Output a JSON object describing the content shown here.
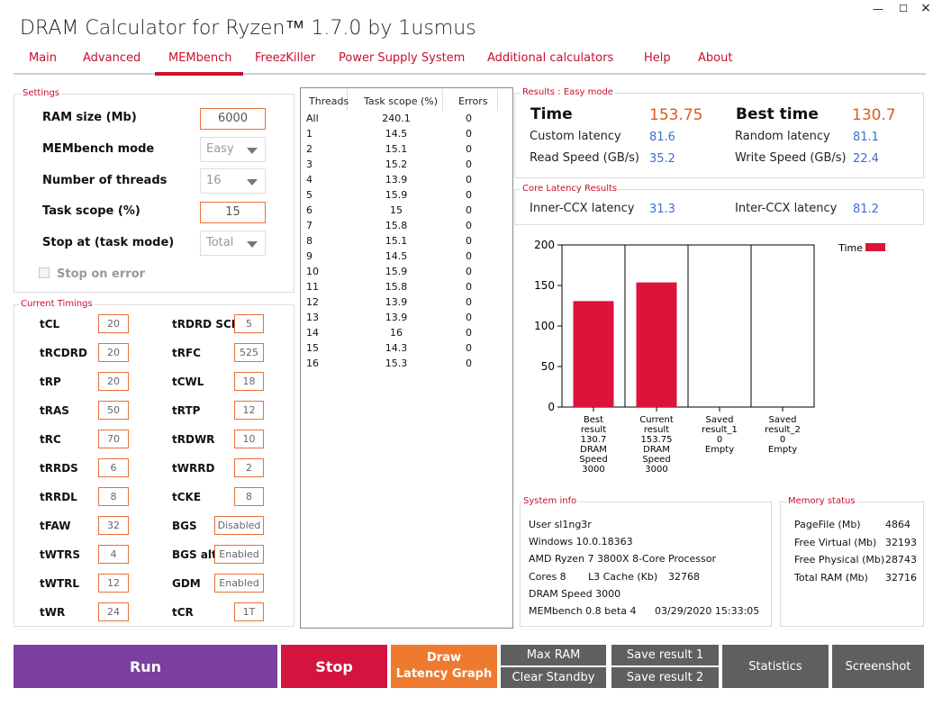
{
  "window": {
    "title": "DRAM Calculator for Ryzen™ 1.7.0 by 1usmus",
    "min": "—",
    "max": "☐",
    "close": "×"
  },
  "tabs": [
    "Main",
    "Advanced",
    "MEMbench",
    "FreezKiller",
    "Power Supply System",
    "Additional calculators",
    "Help",
    "About"
  ],
  "active_tab": "MEMbench",
  "settings": {
    "group_label": "Settings",
    "ram_size_label": "RAM size (Mb)",
    "ram_size": "6000",
    "mode_label": "MEMbench mode",
    "mode": "Easy",
    "threads_label": "Number of threads",
    "threads": "16",
    "scope_label": "Task scope (%)",
    "scope": "15",
    "stop_label": "Stop at (task mode)",
    "stop": "Total",
    "stop_on_error": "Stop on error"
  },
  "timings": {
    "group_label": "Current Timings",
    "left": [
      {
        "name": "tCL",
        "value": "20"
      },
      {
        "name": "tRCDRD",
        "value": "20"
      },
      {
        "name": "tRP",
        "value": "20"
      },
      {
        "name": "tRAS",
        "value": "50"
      },
      {
        "name": "tRC",
        "value": "70"
      },
      {
        "name": "tRRDS",
        "value": "6"
      },
      {
        "name": "tRRDL",
        "value": "8"
      },
      {
        "name": "tFAW",
        "value": "32"
      },
      {
        "name": "tWTRS",
        "value": "4"
      },
      {
        "name": "tWTRL",
        "value": "12"
      },
      {
        "name": "tWR",
        "value": "24"
      }
    ],
    "right": [
      {
        "name": "tRDRD SCL",
        "value": "5"
      },
      {
        "name": "tRFC",
        "value": "525"
      },
      {
        "name": "tCWL",
        "value": "18"
      },
      {
        "name": "tRTP",
        "value": "12"
      },
      {
        "name": "tRDWR",
        "value": "10"
      },
      {
        "name": "tWRRD",
        "value": "2"
      },
      {
        "name": "tCKE",
        "value": "8"
      },
      {
        "name": "BGS",
        "value": "Disabled"
      },
      {
        "name": "BGS alt",
        "value": "Enabled"
      },
      {
        "name": "GDM",
        "value": "Enabled"
      },
      {
        "name": "tCR",
        "value": "1T"
      }
    ]
  },
  "threads_table": {
    "headers": [
      "Threads",
      "Task scope (%)",
      "Errors"
    ],
    "rows": [
      [
        "All",
        "240.1",
        "0"
      ],
      [
        "1",
        "14.5",
        "0"
      ],
      [
        "2",
        "15.1",
        "0"
      ],
      [
        "3",
        "15.2",
        "0"
      ],
      [
        "4",
        "13.9",
        "0"
      ],
      [
        "5",
        "15.9",
        "0"
      ],
      [
        "6",
        "15",
        "0"
      ],
      [
        "7",
        "15.8",
        "0"
      ],
      [
        "8",
        "15.1",
        "0"
      ],
      [
        "9",
        "14.5",
        "0"
      ],
      [
        "10",
        "15.9",
        "0"
      ],
      [
        "11",
        "15.8",
        "0"
      ],
      [
        "12",
        "13.9",
        "0"
      ],
      [
        "13",
        "13.9",
        "0"
      ],
      [
        "14",
        "16",
        "0"
      ],
      [
        "15",
        "14.3",
        "0"
      ],
      [
        "16",
        "15.3",
        "0"
      ]
    ]
  },
  "results": {
    "group_label": "Results : Easy mode",
    "time_label": "Time",
    "time": "153.75",
    "best_label": "Best time",
    "best": "130.7",
    "custom_latency_label": "Custom latency",
    "custom_latency": "81.6",
    "random_latency_label": "Random latency",
    "random_latency": "81.1",
    "read_label": "Read Speed (GB/s)",
    "read": "35.2",
    "write_label": "Write Speed (GB/s)",
    "write": "22.4"
  },
  "core_latency": {
    "group_label": "Core Latency Results",
    "inner_label": "Inner-CCX latency",
    "inner": "31.3",
    "inter_label": "Inter-CCX latency",
    "inter": "81.2"
  },
  "chart_data": {
    "type": "bar",
    "categories": [
      [
        "Best",
        "result",
        "130.7",
        "DRAM",
        "Speed",
        "3000"
      ],
      [
        "Current",
        "result",
        "153.75",
        "DRAM",
        "Speed",
        "3000"
      ],
      [
        "Saved",
        "result_1",
        "0",
        "Empty"
      ],
      [
        "Saved",
        "result_2",
        "0",
        "Empty"
      ]
    ],
    "series": [
      {
        "name": "Time",
        "values": [
          130.7,
          153.75,
          0,
          0
        ],
        "color": "#dc143c"
      }
    ],
    "ylim": [
      0,
      200
    ],
    "yticks": [
      "0",
      "50",
      "100",
      "150",
      "200"
    ],
    "legend": "top-right",
    "grid": "vertical"
  },
  "system_info": {
    "group_label": "System info",
    "user": "User sl1ng3r",
    "os": "Windows 10.0.18363",
    "cpu": "AMD Ryzen 7 3800X 8-Core Processor",
    "cores": "Cores 8",
    "l3_label": "L3 Cache (Kb)",
    "l3": "32768",
    "dram": "DRAM Speed 3000",
    "membench": "MEMbench 0.8 beta 4",
    "datetime": "03/29/2020 15:33:05"
  },
  "memory_status": {
    "group_label": "Memory status",
    "items": [
      {
        "label": "PageFile (Mb)",
        "value": "4864"
      },
      {
        "label": "Free Virtual (Mb)",
        "value": "32193"
      },
      {
        "label": "Free Physical (Mb)",
        "value": "28743"
      },
      {
        "label": "Total RAM (Mb)",
        "value": "32716"
      }
    ]
  },
  "buttons": {
    "run": "Run",
    "stop": "Stop",
    "draw_1": "Draw",
    "draw_2": "Latency Graph",
    "max_ram": "Max RAM",
    "clear_standby": "Clear Standby",
    "save1": "Save result 1",
    "save2": "Save result 2",
    "statistics": "Statistics",
    "screenshot": "Screenshot"
  },
  "colors": {
    "accent": "#c8102e",
    "value_orange": "#e05a1e",
    "value_blue": "#3b6ed1",
    "run": "#7b3f9e",
    "stop": "#d31440",
    "draw": "#ee7a30",
    "gray_btn": "#5f5f5f"
  }
}
